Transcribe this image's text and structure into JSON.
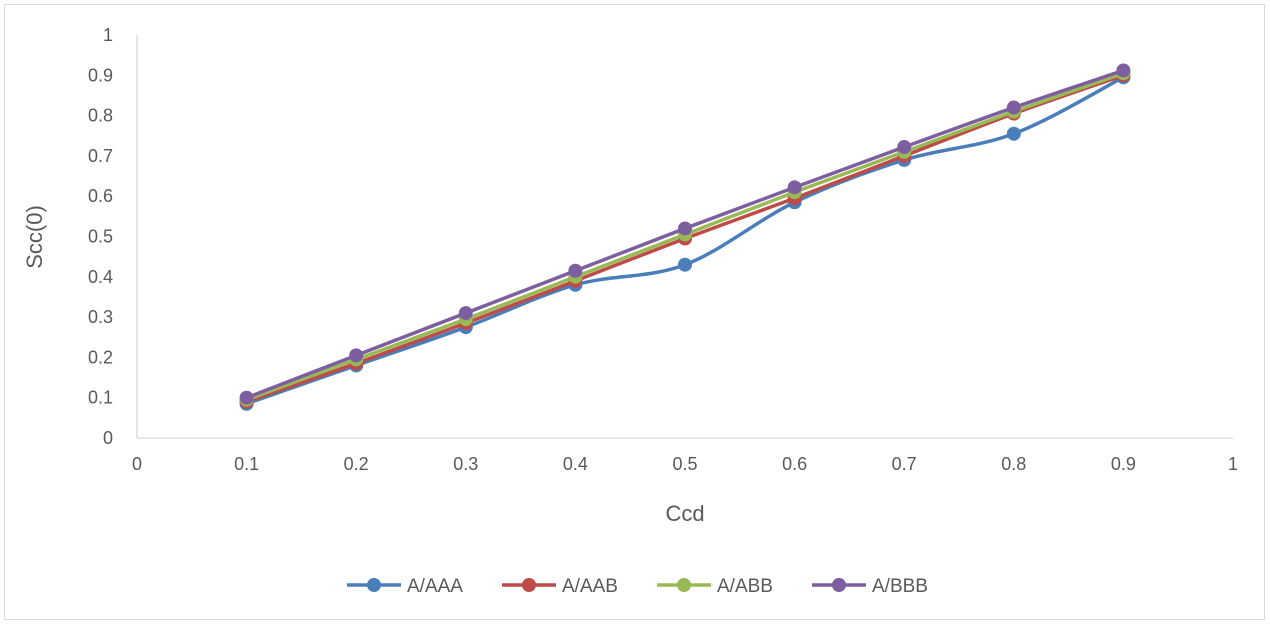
{
  "chart_data": {
    "type": "line",
    "title": "",
    "xlabel": "Ccd",
    "ylabel": "Scc(0)",
    "xlim": [
      0,
      1
    ],
    "ylim": [
      0,
      1
    ],
    "x_ticks": [
      "0",
      "0.1",
      "0.2",
      "0.3",
      "0.4",
      "0.5",
      "0.6",
      "0.7",
      "0.8",
      "0.9",
      "1"
    ],
    "y_ticks": [
      "0",
      "0.1",
      "0.2",
      "0.3",
      "0.4",
      "0.5",
      "0.6",
      "0.7",
      "0.8",
      "0.9",
      "1"
    ],
    "grid": false,
    "legend_position": "bottom",
    "smooth": true,
    "x": [
      0.1,
      0.2,
      0.3,
      0.4,
      0.5,
      0.6,
      0.7,
      0.8,
      0.9
    ],
    "series": [
      {
        "name": "A/AAA",
        "color": "#4a7ebb",
        "values": [
          0.085,
          0.18,
          0.275,
          0.38,
          0.43,
          0.585,
          0.69,
          0.755,
          0.895
        ]
      },
      {
        "name": "A/AAB",
        "color": "#be4b48",
        "values": [
          0.09,
          0.185,
          0.285,
          0.39,
          0.495,
          0.595,
          0.7,
          0.805,
          0.9
        ]
      },
      {
        "name": "A/ABB",
        "color": "#98b954",
        "values": [
          0.095,
          0.195,
          0.295,
          0.4,
          0.505,
          0.61,
          0.71,
          0.81,
          0.905
        ]
      },
      {
        "name": "A/BBB",
        "color": "#7d5fa0",
        "values": [
          0.1,
          0.205,
          0.31,
          0.415,
          0.52,
          0.622,
          0.722,
          0.82,
          0.912
        ]
      }
    ]
  }
}
